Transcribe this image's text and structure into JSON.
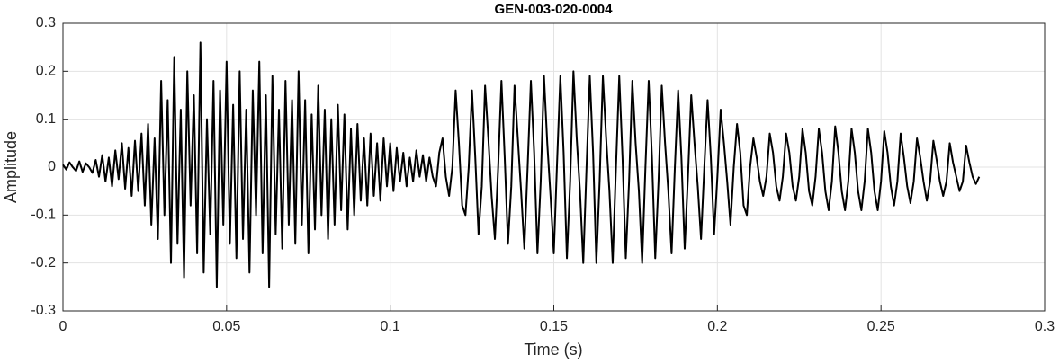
{
  "chart_data": {
    "type": "line",
    "title": "GEN-003-020-0004",
    "xlabel": "Time (s)",
    "ylabel": "Amplitude",
    "color": "#000000",
    "grid": true,
    "xlim": [
      0,
      0.3
    ],
    "xticks": [
      0,
      0.05,
      0.1,
      0.15,
      0.2,
      0.25,
      0.3
    ],
    "ylim": [
      -0.3,
      0.3
    ],
    "yticks": [
      -0.3,
      -0.2,
      -0.1,
      0,
      0.1,
      0.2,
      0.3
    ],
    "x": [
      0,
      0.001,
      0.002,
      0.003,
      0.004,
      0.005,
      0.006,
      0.007,
      0.008,
      0.009,
      0.01,
      0.011,
      0.012,
      0.013,
      0.014,
      0.015,
      0.016,
      0.017,
      0.018,
      0.019,
      0.02,
      0.021,
      0.022,
      0.023,
      0.024,
      0.025,
      0.026,
      0.027,
      0.028,
      0.029,
      0.03,
      0.031,
      0.032,
      0.033,
      0.034,
      0.035,
      0.036,
      0.037,
      0.038,
      0.039,
      0.04,
      0.041,
      0.042,
      0.043,
      0.044,
      0.045,
      0.046,
      0.047,
      0.048,
      0.049,
      0.05,
      0.051,
      0.052,
      0.053,
      0.054,
      0.055,
      0.056,
      0.057,
      0.058,
      0.059,
      0.06,
      0.061,
      0.062,
      0.063,
      0.064,
      0.065,
      0.066,
      0.067,
      0.068,
      0.069,
      0.07,
      0.071,
      0.072,
      0.073,
      0.074,
      0.075,
      0.076,
      0.077,
      0.078,
      0.079,
      0.08,
      0.081,
      0.082,
      0.083,
      0.084,
      0.085,
      0.086,
      0.087,
      0.088,
      0.089,
      0.09,
      0.091,
      0.092,
      0.093,
      0.094,
      0.095,
      0.096,
      0.097,
      0.098,
      0.099,
      0.1,
      0.101,
      0.102,
      0.103,
      0.104,
      0.105,
      0.106,
      0.107,
      0.108,
      0.109,
      0.11,
      0.111,
      0.112,
      0.113,
      0.114,
      0.115,
      0.116,
      0.117,
      0.118,
      0.119,
      0.12,
      0.121,
      0.122,
      0.123,
      0.124,
      0.125,
      0.126,
      0.127,
      0.128,
      0.129,
      0.13,
      0.131,
      0.132,
      0.133,
      0.134,
      0.135,
      0.136,
      0.137,
      0.138,
      0.139,
      0.14,
      0.141,
      0.142,
      0.143,
      0.144,
      0.145,
      0.146,
      0.147,
      0.148,
      0.149,
      0.15,
      0.151,
      0.152,
      0.153,
      0.154,
      0.155,
      0.156,
      0.157,
      0.158,
      0.159,
      0.16,
      0.161,
      0.162,
      0.163,
      0.164,
      0.165,
      0.166,
      0.167,
      0.168,
      0.169,
      0.17,
      0.171,
      0.172,
      0.173,
      0.174,
      0.175,
      0.176,
      0.177,
      0.178,
      0.179,
      0.18,
      0.181,
      0.182,
      0.183,
      0.184,
      0.185,
      0.186,
      0.187,
      0.188,
      0.189,
      0.19,
      0.191,
      0.192,
      0.193,
      0.194,
      0.195,
      0.196,
      0.197,
      0.198,
      0.199,
      0.2,
      0.201,
      0.202,
      0.203,
      0.204,
      0.205,
      0.206,
      0.207,
      0.208,
      0.209,
      0.21,
      0.211,
      0.212,
      0.213,
      0.214,
      0.215,
      0.216,
      0.217,
      0.218,
      0.219,
      0.22,
      0.221,
      0.222,
      0.223,
      0.224,
      0.225,
      0.226,
      0.227,
      0.228,
      0.229,
      0.23,
      0.231,
      0.232,
      0.233,
      0.234,
      0.235,
      0.236,
      0.237,
      0.238,
      0.239,
      0.24,
      0.241,
      0.242,
      0.243,
      0.244,
      0.245,
      0.246,
      0.247,
      0.248,
      0.249,
      0.25,
      0.251,
      0.252,
      0.253,
      0.254,
      0.255,
      0.256,
      0.257,
      0.258,
      0.259,
      0.26,
      0.261,
      0.262,
      0.263,
      0.264,
      0.265,
      0.266,
      0.267,
      0.268,
      0.269,
      0.27,
      0.271,
      0.272,
      0.273,
      0.274,
      0.275,
      0.276,
      0.277,
      0.278,
      0.279,
      0.28
    ],
    "values": [
      0.005,
      -0.005,
      0.01,
      0.0,
      -0.008,
      0.012,
      -0.01,
      0.008,
      0.0,
      -0.012,
      0.015,
      -0.02,
      0.025,
      -0.03,
      0.02,
      -0.04,
      0.035,
      -0.025,
      0.05,
      -0.045,
      0.04,
      -0.06,
      0.055,
      -0.05,
      0.07,
      -0.08,
      0.09,
      -0.12,
      0.06,
      -0.15,
      0.18,
      -0.1,
      0.14,
      -0.2,
      0.23,
      -0.16,
      0.12,
      -0.23,
      0.2,
      -0.08,
      0.15,
      -0.18,
      0.26,
      -0.22,
      0.1,
      -0.14,
      0.18,
      -0.25,
      0.16,
      -0.12,
      0.22,
      -0.16,
      0.13,
      -0.19,
      0.2,
      -0.15,
      0.12,
      -0.22,
      0.16,
      -0.1,
      0.22,
      -0.18,
      0.15,
      -0.25,
      0.19,
      -0.14,
      0.12,
      -0.17,
      0.18,
      -0.12,
      0.14,
      -0.16,
      0.2,
      -0.12,
      0.14,
      -0.18,
      0.11,
      -0.13,
      0.17,
      -0.1,
      0.12,
      -0.15,
      0.1,
      -0.12,
      0.13,
      -0.09,
      0.11,
      -0.13,
      0.08,
      -0.1,
      0.09,
      -0.07,
      0.06,
      -0.08,
      0.07,
      -0.06,
      0.05,
      -0.07,
      0.06,
      -0.04,
      0.05,
      -0.05,
      0.04,
      -0.03,
      0.03,
      -0.04,
      0.02,
      -0.03,
      0.035,
      -0.02,
      0.025,
      -0.03,
      0.02,
      -0.02,
      -0.04,
      0.03,
      0.06,
      -0.02,
      -0.06,
      0.0,
      0.16,
      0.05,
      -0.08,
      -0.1,
      0.0,
      0.16,
      0.02,
      -0.14,
      -0.04,
      0.17,
      0.06,
      -0.06,
      -0.15,
      0.0,
      0.18,
      0.02,
      -0.16,
      -0.04,
      0.17,
      0.06,
      -0.05,
      -0.17,
      0.0,
      0.18,
      0.03,
      -0.18,
      -0.03,
      0.19,
      0.05,
      -0.06,
      -0.18,
      0.01,
      0.19,
      0.03,
      -0.19,
      -0.03,
      0.2,
      0.06,
      -0.05,
      -0.2,
      0.0,
      0.19,
      0.03,
      -0.2,
      -0.03,
      0.19,
      0.06,
      -0.05,
      -0.2,
      0.0,
      0.19,
      0.02,
      -0.19,
      -0.03,
      0.18,
      0.05,
      -0.05,
      -0.2,
      0.0,
      0.18,
      0.02,
      -0.19,
      -0.03,
      0.17,
      0.05,
      -0.05,
      -0.18,
      0.0,
      0.16,
      0.02,
      -0.17,
      -0.02,
      0.15,
      0.05,
      -0.04,
      -0.15,
      0.0,
      0.14,
      0.02,
      -0.14,
      -0.02,
      0.12,
      0.05,
      -0.03,
      -0.12,
      0.0,
      0.09,
      0.03,
      -0.08,
      -0.1,
      0.0,
      0.06,
      0.02,
      -0.03,
      -0.06,
      -0.02,
      0.07,
      0.03,
      -0.04,
      -0.07,
      -0.02,
      0.07,
      0.03,
      -0.04,
      -0.07,
      -0.02,
      0.08,
      0.03,
      -0.05,
      -0.08,
      -0.02,
      0.08,
      0.03,
      -0.05,
      -0.09,
      -0.03,
      0.085,
      0.03,
      -0.05,
      -0.09,
      -0.03,
      0.08,
      0.03,
      -0.05,
      -0.09,
      -0.03,
      0.08,
      0.03,
      -0.05,
      -0.09,
      -0.03,
      0.075,
      0.03,
      -0.04,
      -0.08,
      -0.03,
      0.07,
      0.02,
      -0.04,
      -0.075,
      -0.03,
      0.06,
      0.02,
      -0.03,
      -0.07,
      -0.03,
      0.055,
      0.015,
      -0.03,
      -0.06,
      -0.03,
      0.05,
      0.01,
      -0.02,
      -0.05,
      -0.03,
      0.045,
      0.01,
      -0.02,
      -0.035,
      -0.02
    ]
  }
}
